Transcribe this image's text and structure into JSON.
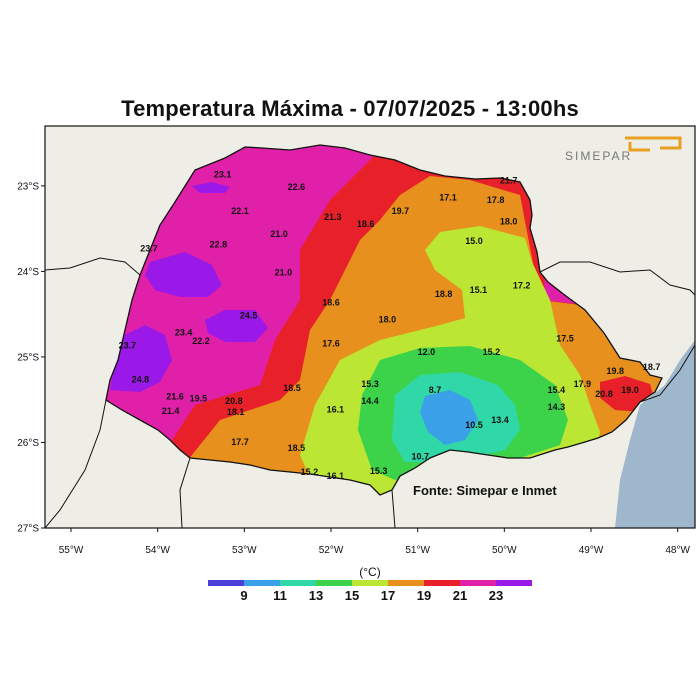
{
  "title": "Temperatura Máxima - 07/07/2025 - 13:00hs",
  "logo_text": "SIMEPAR",
  "source": "Fonte: Simepar e Inmet",
  "units_label": "(°C)",
  "map": {
    "lon_range": [
      -55.3,
      -47.8
    ],
    "lat_range": [
      -27.0,
      -22.3
    ],
    "lat_ticks": [
      {
        "v": -23,
        "label": "23°S"
      },
      {
        "v": -24,
        "label": "24°S"
      },
      {
        "v": -25,
        "label": "25°S"
      },
      {
        "v": -26,
        "label": "26°S"
      },
      {
        "v": -27,
        "label": "27°S"
      }
    ],
    "lon_ticks": [
      {
        "v": -55,
        "label": "55°W"
      },
      {
        "v": -54,
        "label": "54°W"
      },
      {
        "v": -53,
        "label": "53°W"
      },
      {
        "v": -52,
        "label": "52°W"
      },
      {
        "v": -51,
        "label": "51°W"
      },
      {
        "v": -50,
        "label": "50°W"
      },
      {
        "v": -49,
        "label": "49°W"
      },
      {
        "v": -48,
        "label": "48°W"
      }
    ],
    "colors": {
      "land": "#efeee6",
      "ocean": "#9fb7cc"
    }
  },
  "colorbar": {
    "colors": [
      "#4b3fd8",
      "#3aa0e8",
      "#30d8a8",
      "#3cd24a",
      "#bce634",
      "#e8901e",
      "#e8202a",
      "#e020a8",
      "#9a18e8"
    ],
    "labels": [
      "9",
      "11",
      "13",
      "15",
      "17",
      "19",
      "21",
      "23"
    ]
  },
  "stations": [
    {
      "lon": -53.25,
      "lat": -22.9,
      "v": "23.1"
    },
    {
      "lon": -52.4,
      "lat": -23.05,
      "v": "22.6"
    },
    {
      "lon": -53.05,
      "lat": -23.33,
      "v": "22.1"
    },
    {
      "lon": -51.98,
      "lat": -23.4,
      "v": "21.3"
    },
    {
      "lon": -51.6,
      "lat": -23.48,
      "v": "18.6"
    },
    {
      "lon": -51.2,
      "lat": -23.33,
      "v": "19.7"
    },
    {
      "lon": -50.65,
      "lat": -23.17,
      "v": "17.1"
    },
    {
      "lon": -50.1,
      "lat": -23.2,
      "v": "17.8"
    },
    {
      "lon": -49.95,
      "lat": -22.97,
      "v": "21.7"
    },
    {
      "lon": -49.95,
      "lat": -23.45,
      "v": "18.0"
    },
    {
      "lon": -52.6,
      "lat": -23.6,
      "v": "21.0"
    },
    {
      "lon": -53.3,
      "lat": -23.72,
      "v": "22.8"
    },
    {
      "lon": -54.1,
      "lat": -23.77,
      "v": "23.7"
    },
    {
      "lon": -50.35,
      "lat": -23.68,
      "v": "15.0"
    },
    {
      "lon": -52.55,
      "lat": -24.05,
      "v": "21.0"
    },
    {
      "lon": -50.7,
      "lat": -24.3,
      "v": "18.8"
    },
    {
      "lon": -50.3,
      "lat": -24.25,
      "v": "15.1"
    },
    {
      "lon": -49.8,
      "lat": -24.2,
      "v": "17.2"
    },
    {
      "lon": -52.0,
      "lat": -24.4,
      "v": "18.6"
    },
    {
      "lon": -52.95,
      "lat": -24.55,
      "v": "24.5"
    },
    {
      "lon": -51.35,
      "lat": -24.6,
      "v": "18.0"
    },
    {
      "lon": -53.7,
      "lat": -24.75,
      "v": "23.4"
    },
    {
      "lon": -53.5,
      "lat": -24.85,
      "v": "22.2"
    },
    {
      "lon": -54.35,
      "lat": -24.9,
      "v": "23.7"
    },
    {
      "lon": -52.0,
      "lat": -24.88,
      "v": "17.6"
    },
    {
      "lon": -49.3,
      "lat": -24.82,
      "v": "17.5"
    },
    {
      "lon": -50.9,
      "lat": -24.98,
      "v": "12.0"
    },
    {
      "lon": -50.15,
      "lat": -24.98,
      "v": "15.2"
    },
    {
      "lon": -48.72,
      "lat": -25.2,
      "v": "19.8"
    },
    {
      "lon": -48.3,
      "lat": -25.15,
      "v": "18.7"
    },
    {
      "lon": -54.2,
      "lat": -25.3,
      "v": "24.8"
    },
    {
      "lon": -51.55,
      "lat": -25.35,
      "v": "15.3"
    },
    {
      "lon": -49.1,
      "lat": -25.35,
      "v": "17.9"
    },
    {
      "lon": -49.4,
      "lat": -25.42,
      "v": "15.4"
    },
    {
      "lon": -48.55,
      "lat": -25.42,
      "v": "19.0"
    },
    {
      "lon": -48.85,
      "lat": -25.47,
      "v": "20.8"
    },
    {
      "lon": -50.8,
      "lat": -25.42,
      "v": "8.7"
    },
    {
      "lon": -52.45,
      "lat": -25.4,
      "v": "18.5"
    },
    {
      "lon": -53.8,
      "lat": -25.5,
      "v": "21.6"
    },
    {
      "lon": -53.53,
      "lat": -25.52,
      "v": "19.5"
    },
    {
      "lon": -53.12,
      "lat": -25.55,
      "v": "20.8"
    },
    {
      "lon": -51.55,
      "lat": -25.55,
      "v": "14.4"
    },
    {
      "lon": -49.4,
      "lat": -25.62,
      "v": "14.3"
    },
    {
      "lon": -53.85,
      "lat": -25.67,
      "v": "21.4"
    },
    {
      "lon": -53.1,
      "lat": -25.68,
      "v": "18.1"
    },
    {
      "lon": -51.95,
      "lat": -25.65,
      "v": "16.1"
    },
    {
      "lon": -50.05,
      "lat": -25.77,
      "v": "13.4"
    },
    {
      "lon": -50.35,
      "lat": -25.83,
      "v": "10.5"
    },
    {
      "lon": -53.05,
      "lat": -26.03,
      "v": "17.7"
    },
    {
      "lon": -52.4,
      "lat": -26.1,
      "v": "18.5"
    },
    {
      "lon": -50.97,
      "lat": -26.2,
      "v": "10.7"
    },
    {
      "lon": -52.25,
      "lat": -26.38,
      "v": "15.2"
    },
    {
      "lon": -51.95,
      "lat": -26.43,
      "v": "16.1"
    },
    {
      "lon": -51.45,
      "lat": -26.37,
      "v": "15.3"
    }
  ]
}
